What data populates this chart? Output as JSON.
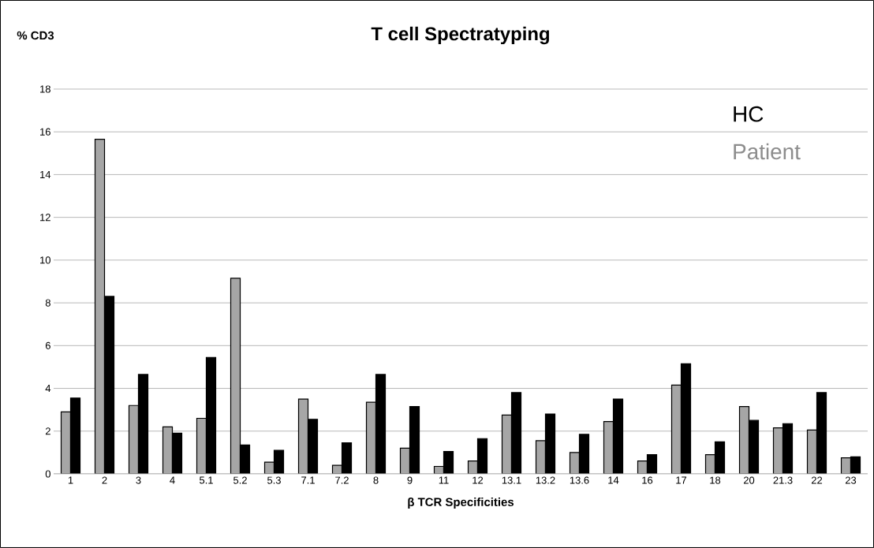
{
  "chart_data": {
    "type": "bar",
    "title": "T cell Spectratyping",
    "xlabel": "β TCR Specificities",
    "ylabel": "% CD3",
    "categories": [
      "1",
      "2",
      "3",
      "4",
      "5.1",
      "5.2",
      "5.3",
      "7.1",
      "7.2",
      "8",
      "9",
      "11",
      "12",
      "13.1",
      "13.2",
      "13.6",
      "14",
      "16",
      "17",
      "18",
      "20",
      "21.3",
      "22",
      "23"
    ],
    "series": [
      {
        "name": "Patient",
        "color": "#a6a6a6",
        "values": [
          2.9,
          15.65,
          3.2,
          2.2,
          2.6,
          9.15,
          0.55,
          3.5,
          0.4,
          3.35,
          1.2,
          0.35,
          0.6,
          2.75,
          1.55,
          1.0,
          2.45,
          0.6,
          4.15,
          0.9,
          3.15,
          2.15,
          2.05,
          0.75
        ]
      },
      {
        "name": "HC",
        "color": "#000000",
        "values": [
          3.55,
          8.3,
          4.65,
          1.9,
          5.45,
          1.35,
          1.1,
          2.55,
          1.45,
          4.65,
          3.15,
          1.05,
          1.65,
          3.8,
          2.8,
          1.85,
          3.5,
          0.9,
          5.15,
          1.5,
          2.5,
          2.35,
          3.8,
          0.8
        ]
      }
    ],
    "ylim": [
      0,
      18
    ],
    "yticks": [
      0,
      2,
      4,
      6,
      8,
      10,
      12,
      14,
      16,
      18
    ],
    "grid": "y",
    "legend": "top right"
  }
}
